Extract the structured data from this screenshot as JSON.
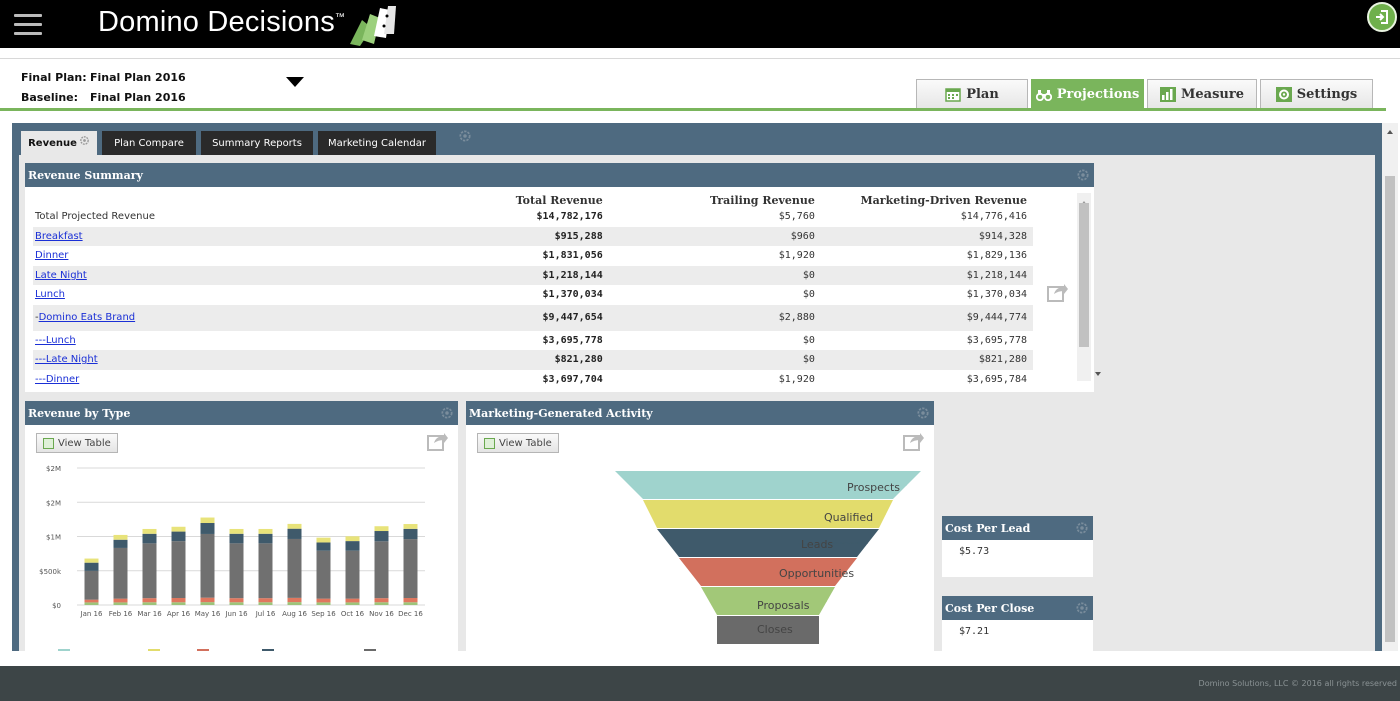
{
  "app": {
    "title": "Domino Decisions",
    "trademark": "™"
  },
  "plan": {
    "final_label": "Final Plan:",
    "final_value": "Final Plan 2016",
    "baseline_label": "Baseline:",
    "baseline_value": "Final Plan 2016"
  },
  "nav_tabs": [
    {
      "label": "Plan",
      "active": false,
      "icon": "calendar-icon"
    },
    {
      "label": "Projections",
      "active": true,
      "icon": "binoculars-icon"
    },
    {
      "label": "Measure",
      "active": false,
      "icon": "bar-chart-icon"
    },
    {
      "label": "Settings",
      "active": false,
      "icon": "gear-icon"
    }
  ],
  "sub_tabs": [
    {
      "label": "Revenue",
      "active": true
    },
    {
      "label": "Plan Compare",
      "active": false
    },
    {
      "label": "Summary Reports",
      "active": false
    },
    {
      "label": "Marketing Calendar",
      "active": false
    }
  ],
  "revenue_summary": {
    "title": "Revenue Summary",
    "columns": [
      "",
      "Total Revenue",
      "Trailing Revenue",
      "Marketing-Driven Revenue"
    ],
    "rows": [
      {
        "label": "Total Projected Revenue",
        "link": false,
        "total": "$14,782,176",
        "trailing": "$5,760",
        "marketing": "$14,776,416"
      },
      {
        "label": "Breakfast",
        "link": true,
        "total": "$915,288",
        "trailing": "$960",
        "marketing": "$914,328"
      },
      {
        "label": "Dinner",
        "link": true,
        "total": "$1,831,056",
        "trailing": "$1,920",
        "marketing": "$1,829,136"
      },
      {
        "label": "Late Night",
        "link": true,
        "total": "$1,218,144",
        "trailing": "$0",
        "marketing": "$1,218,144"
      },
      {
        "label": "Lunch",
        "link": true,
        "total": "$1,370,034",
        "trailing": "$0",
        "marketing": "$1,370,034"
      },
      {
        "label": "Domino Eats Brand",
        "prefix": "-",
        "link": true,
        "total": "$9,447,654",
        "trailing": "$2,880",
        "marketing": "$9,444,774"
      },
      {
        "label": "---Lunch",
        "link": true,
        "total": "$3,695,778",
        "trailing": "$0",
        "marketing": "$3,695,778"
      },
      {
        "label": "---Late Night",
        "link": true,
        "total": "$821,280",
        "trailing": "$0",
        "marketing": "$821,280"
      },
      {
        "label": "---Dinner",
        "link": true,
        "total": "$3,697,704",
        "trailing": "$1,920",
        "marketing": "$3,695,784"
      }
    ]
  },
  "revenue_by_type": {
    "title": "Revenue by Type",
    "view_table_label": "View Table"
  },
  "chart_data": {
    "type": "bar",
    "stacked": true,
    "categories": [
      "Jan 16",
      "Feb 16",
      "Mar 16",
      "Apr 16",
      "May 16",
      "Jun 16",
      "Jul 16",
      "Aug 16",
      "Sep 16",
      "Oct 16",
      "Nov 16",
      "Dec 16"
    ],
    "y_tick_labels": [
      "$2M",
      "$2M",
      "$1M",
      "$500k",
      "$0"
    ],
    "y_tick_values": [
      2000000,
      1500000,
      1000000,
      500000,
      0
    ],
    "ylim": [
      0,
      2000000
    ],
    "grid": true,
    "colors": [
      "#9dc47a",
      "#e0775e",
      "#707070",
      "#3f5a6b",
      "#e8e37a"
    ],
    "series": [
      {
        "values": [
          38000,
          38000,
          40000,
          40000,
          42000,
          40000,
          40000,
          42000,
          38000,
          38000,
          40000,
          40000
        ]
      },
      {
        "values": [
          40000,
          55000,
          60000,
          62000,
          65000,
          60000,
          60000,
          62000,
          55000,
          55000,
          60000,
          62000
        ]
      },
      {
        "values": [
          420000,
          740000,
          800000,
          830000,
          930000,
          800000,
          800000,
          860000,
          700000,
          700000,
          830000,
          860000
        ]
      },
      {
        "values": [
          120000,
          120000,
          140000,
          140000,
          160000,
          140000,
          140000,
          150000,
          120000,
          140000,
          150000,
          150000
        ]
      },
      {
        "values": [
          60000,
          70000,
          70000,
          70000,
          80000,
          70000,
          70000,
          70000,
          70000,
          70000,
          70000,
          70000
        ]
      }
    ]
  },
  "marketing_activity": {
    "title": "Marketing-Generated Activity",
    "view_table_label": "View Table",
    "stages": [
      {
        "label": "Prospects",
        "color": "#9fd3cd"
      },
      {
        "label": "Qualified",
        "color": "#e2dc6c"
      },
      {
        "label": "Leads",
        "color": "#3f5a6b"
      },
      {
        "label": "Opportunities",
        "color": "#d2705d"
      },
      {
        "label": "Proposals",
        "color": "#a2c878"
      },
      {
        "label": "Closes",
        "color": "#6a6a6a"
      }
    ]
  },
  "cost_per_lead": {
    "title": "Cost Per Lead",
    "value": "$5.73"
  },
  "cost_per_close": {
    "title": "Cost Per Close",
    "value": "$7.21"
  },
  "footer": {
    "text": "Domino Solutions, LLC © 2016 all rights reserved"
  }
}
